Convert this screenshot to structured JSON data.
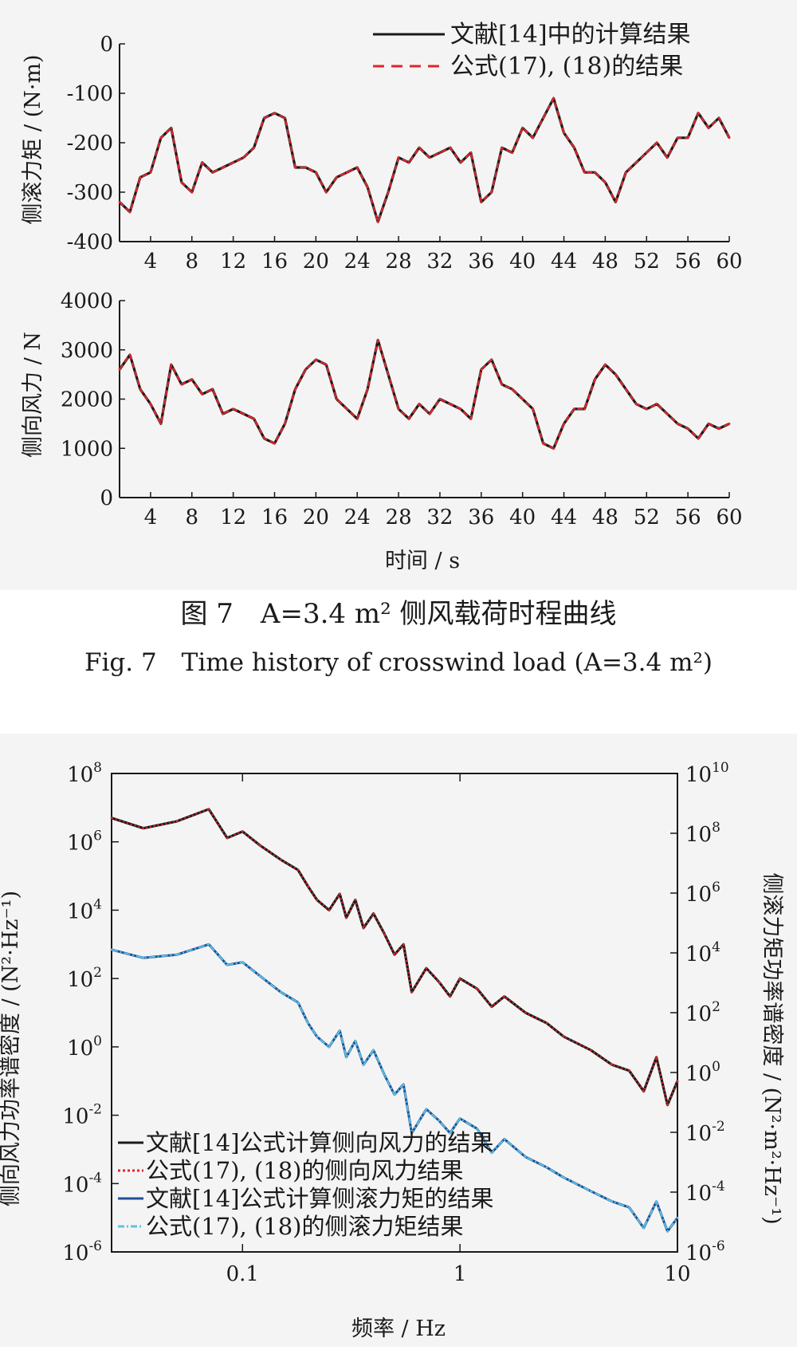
{
  "captions": {
    "cn": "图 7　A=3.4 m² 侧风载荷时程曲线",
    "en": "Fig. 7　Time history of crosswind load (A=3.4 m²)"
  },
  "chart_data": [
    {
      "id": "roll-moment",
      "type": "line",
      "ylabel": "侧滚力矩 / (N·m)",
      "xlabel": "",
      "xlim": [
        1,
        60
      ],
      "ylim": [
        -400,
        0
      ],
      "xticks": [
        4,
        8,
        12,
        16,
        20,
        24,
        28,
        32,
        36,
        40,
        44,
        48,
        52,
        56,
        60
      ],
      "yticks": [
        0,
        -100,
        -200,
        -300,
        -400
      ],
      "legend_position": "top-right",
      "series": [
        {
          "name": "文献[14]中的计算结果",
          "color": "#1a1a1a",
          "style": "solid"
        },
        {
          "name": "公式(17), (18)的结果",
          "color": "#e0262b",
          "style": "dashed"
        }
      ],
      "x": [
        1,
        2,
        3,
        4,
        5,
        6,
        7,
        8,
        9,
        10,
        11,
        12,
        13,
        14,
        15,
        16,
        17,
        18,
        19,
        20,
        21,
        22,
        23,
        24,
        25,
        26,
        27,
        28,
        29,
        30,
        31,
        32,
        33,
        34,
        35,
        36,
        37,
        38,
        39,
        40,
        41,
        42,
        43,
        44,
        45,
        46,
        47,
        48,
        49,
        50,
        51,
        52,
        53,
        54,
        55,
        56,
        57,
        58,
        59,
        60
      ],
      "values": [
        -320,
        -340,
        -270,
        -260,
        -190,
        -170,
        -280,
        -300,
        -240,
        -260,
        -250,
        -240,
        -230,
        -210,
        -150,
        -140,
        -150,
        -250,
        -250,
        -260,
        -300,
        -270,
        -260,
        -250,
        -290,
        -360,
        -300,
        -230,
        -240,
        -210,
        -230,
        -220,
        -210,
        -240,
        -220,
        -320,
        -300,
        -210,
        -220,
        -170,
        -190,
        -150,
        -110,
        -180,
        -210,
        -260,
        -260,
        -280,
        -320,
        -260,
        -240,
        -220,
        -200,
        -230,
        -190,
        -190,
        -140,
        -170,
        -150,
        -190
      ]
    },
    {
      "id": "side-force",
      "type": "line",
      "ylabel": "侧向风力 / N",
      "xlabel": "时间 / s",
      "xlim": [
        1,
        60
      ],
      "ylim": [
        0,
        4000
      ],
      "xticks": [
        4,
        8,
        12,
        16,
        20,
        24,
        28,
        32,
        36,
        40,
        44,
        48,
        52,
        56,
        60
      ],
      "yticks": [
        0,
        1000,
        2000,
        3000,
        4000
      ],
      "series": [
        {
          "name": "文献[14]中的计算结果",
          "color": "#1a1a1a",
          "style": "solid"
        },
        {
          "name": "公式(17), (18)的结果",
          "color": "#e0262b",
          "style": "dashed"
        }
      ],
      "x": [
        1,
        2,
        3,
        4,
        5,
        6,
        7,
        8,
        9,
        10,
        11,
        12,
        13,
        14,
        15,
        16,
        17,
        18,
        19,
        20,
        21,
        22,
        23,
        24,
        25,
        26,
        27,
        28,
        29,
        30,
        31,
        32,
        33,
        34,
        35,
        36,
        37,
        38,
        39,
        40,
        41,
        42,
        43,
        44,
        45,
        46,
        47,
        48,
        49,
        50,
        51,
        52,
        53,
        54,
        55,
        56,
        57,
        58,
        59,
        60
      ],
      "values": [
        2600,
        2900,
        2200,
        1900,
        1500,
        2700,
        2300,
        2400,
        2100,
        2200,
        1700,
        1800,
        1700,
        1600,
        1200,
        1100,
        1500,
        2200,
        2600,
        2800,
        2700,
        2000,
        1800,
        1600,
        2200,
        3200,
        2500,
        1800,
        1600,
        1900,
        1700,
        2000,
        1900,
        1800,
        1600,
        2600,
        2800,
        2300,
        2200,
        2000,
        1800,
        1100,
        1000,
        1500,
        1800,
        1800,
        2400,
        2700,
        2500,
        2200,
        1900,
        1800,
        1900,
        1700,
        1500,
        1400,
        1200,
        1500,
        1400,
        1500
      ]
    },
    {
      "id": "psd",
      "type": "line",
      "xlabel": "频率 / Hz",
      "ylabel": "侧向风力功率谱密度 / (N²·Hz⁻¹)",
      "ylabel_right": "侧滚力矩功率谱密度 / (N²·m²·Hz⁻¹)",
      "xscale": "log",
      "yscale": "log",
      "xlim": [
        0.025,
        10
      ],
      "ylim": [
        1e-06,
        100000000.0
      ],
      "ylim_right": [
        1e-06,
        10000000000.0
      ],
      "xticks": [
        {
          "value": 0.1,
          "label": "0.1"
        },
        {
          "value": 1,
          "label": "1"
        },
        {
          "value": 10,
          "label": "10"
        }
      ],
      "yticks_left": [
        {
          "exp": 8,
          "label": "10",
          "sup": "8"
        },
        {
          "exp": 6,
          "label": "10",
          "sup": "6"
        },
        {
          "exp": 4,
          "label": "10",
          "sup": "4"
        },
        {
          "exp": 2,
          "label": "10",
          "sup": "2"
        },
        {
          "exp": 0,
          "label": "10",
          "sup": "0"
        },
        {
          "exp": -2,
          "label": "10",
          "sup": "-2"
        },
        {
          "exp": -4,
          "label": "10",
          "sup": "-4"
        },
        {
          "exp": -6,
          "label": "10",
          "sup": "-6"
        }
      ],
      "yticks_right": [
        {
          "exp": 10,
          "label": "10",
          "sup": "10"
        },
        {
          "exp": 8,
          "label": "10",
          "sup": "8"
        },
        {
          "exp": 6,
          "label": "10",
          "sup": "6"
        },
        {
          "exp": 4,
          "label": "10",
          "sup": "4"
        },
        {
          "exp": 2,
          "label": "10",
          "sup": "2"
        },
        {
          "exp": 0,
          "label": "10",
          "sup": "0"
        },
        {
          "exp": -2,
          "label": "10",
          "sup": "-2"
        },
        {
          "exp": -4,
          "label": "10",
          "sup": "-4"
        },
        {
          "exp": -6,
          "label": "10",
          "sup": "-6"
        }
      ],
      "legend_position": "bottom-left",
      "x": [
        0.025,
        0.035,
        0.05,
        0.07,
        0.085,
        0.1,
        0.12,
        0.15,
        0.18,
        0.2,
        0.22,
        0.25,
        0.28,
        0.3,
        0.33,
        0.36,
        0.4,
        0.45,
        0.5,
        0.55,
        0.6,
        0.7,
        0.8,
        0.9,
        1.0,
        1.2,
        1.4,
        1.6,
        2.0,
        2.5,
        3.0,
        4.0,
        5.0,
        6.0,
        7.0,
        8.0,
        9.0,
        10.0
      ],
      "series": [
        {
          "name": "文献[14]公式计算侧向风力的结果",
          "color": "#1a1a1a",
          "style": "solid",
          "axis": "left",
          "values": [
            5000000.0,
            2500000.0,
            4000000.0,
            9000000.0,
            1300000.0,
            2000000.0,
            800000.0,
            300000.0,
            150000.0,
            50000.0,
            20000.0,
            10000.0,
            30000.0,
            6000.0,
            20000.0,
            3000.0,
            8000.0,
            2000.0,
            500.0,
            1000.0,
            40,
            200,
            80,
            30,
            100,
            50,
            15,
            30,
            10,
            5,
            2,
            0.8,
            0.3,
            0.2,
            0.05,
            0.5,
            0.02,
            0.1
          ]
        },
        {
          "name": "公式(17), (18)的侧向风力结果",
          "color": "#e0262b",
          "style": "dotted",
          "axis": "left",
          "values": [
            5000000.0,
            2500000.0,
            4000000.0,
            9000000.0,
            1300000.0,
            2000000.0,
            800000.0,
            300000.0,
            150000.0,
            50000.0,
            20000.0,
            10000.0,
            30000.0,
            6000.0,
            20000.0,
            3000.0,
            8000.0,
            2000.0,
            500.0,
            1000.0,
            40,
            200,
            80,
            30,
            100,
            50,
            15,
            30,
            10,
            5,
            2,
            0.8,
            0.3,
            0.2,
            0.05,
            0.5,
            0.02,
            0.1
          ]
        },
        {
          "name": "文献[14]公式计算侧滚力矩的结果",
          "color": "#1f4e9a",
          "style": "solid",
          "axis": "left",
          "values": [
            700,
            400,
            500,
            1000,
            250,
            300,
            120,
            40,
            20,
            5,
            2,
            1,
            3,
            0.5,
            1.5,
            0.3,
            0.8,
            0.15,
            0.04,
            0.08,
            0.003,
            0.015,
            0.007,
            0.003,
            0.008,
            0.004,
            0.0008,
            0.002,
            0.0006,
            0.0003,
            0.00015,
            6e-05,
            3e-05,
            2e-05,
            5e-06,
            3e-05,
            4e-06,
            1e-05
          ]
        },
        {
          "name": "公式(17), (18)的侧滚力矩结果",
          "color": "#5cc4df",
          "style": "dashdot",
          "axis": "left",
          "values": [
            700,
            400,
            500,
            1000,
            250,
            300,
            120,
            40,
            20,
            5,
            2,
            1,
            3,
            0.5,
            1.5,
            0.3,
            0.8,
            0.15,
            0.04,
            0.08,
            0.003,
            0.015,
            0.007,
            0.003,
            0.008,
            0.004,
            0.0008,
            0.002,
            0.0006,
            0.0003,
            0.00015,
            6e-05,
            3e-05,
            2e-05,
            5e-06,
            3e-05,
            4e-06,
            1e-05
          ]
        }
      ]
    }
  ]
}
